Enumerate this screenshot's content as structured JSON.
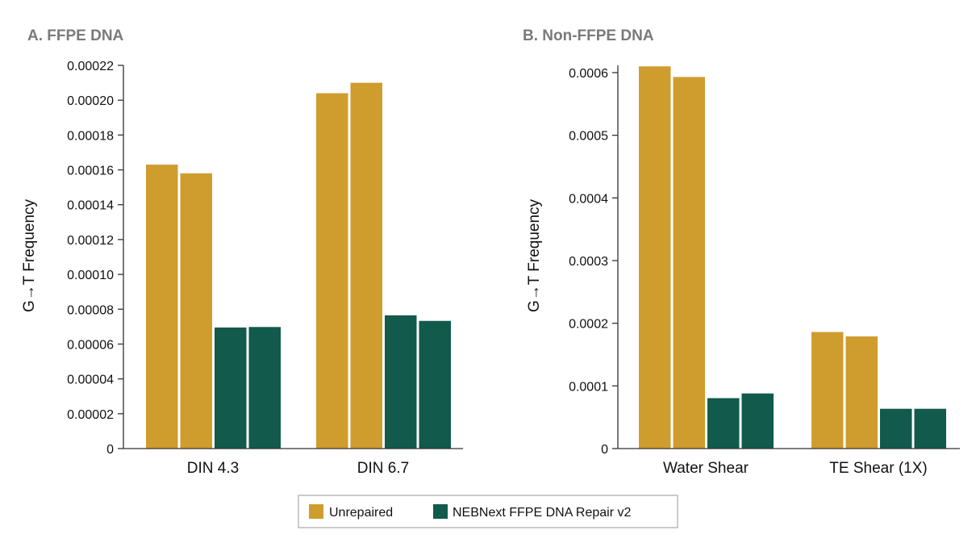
{
  "colors": {
    "unrepaired": "#CF9C2E",
    "repaired": "#115A4C"
  },
  "legend": {
    "items": [
      {
        "label": "Unrepaired",
        "color": "#CF9C2E"
      },
      {
        "label": "NEBNext FFPE DNA Repair v2",
        "color": "#115A4C"
      }
    ]
  },
  "chart_data": [
    {
      "type": "bar",
      "title": "A. FFPE DNA",
      "ylabel": "G→T Frequency",
      "ylim": [
        0,
        0.00022
      ],
      "yticks": [
        "0",
        "0.00002",
        "0.00004",
        "0.00006",
        "0.00008",
        "0.00010",
        "0.00012",
        "0.00014",
        "0.00016",
        "0.00018",
        "0.00020",
        "0.00022"
      ],
      "categories": [
        "DIN 4.3",
        "DIN 6.7"
      ],
      "series": [
        {
          "name": "Unrepaired",
          "values": [
            0.000163,
            0.000204
          ]
        },
        {
          "name": "Unrepaired",
          "values": [
            0.000158,
            0.00021
          ]
        },
        {
          "name": "NEBNext FFPE DNA Repair v2",
          "values": [
            6.95e-05,
            7.65e-05
          ]
        },
        {
          "name": "NEBNext FFPE DNA Repair v2",
          "values": [
            6.98e-05,
            7.33e-05
          ]
        }
      ]
    },
    {
      "type": "bar",
      "title": "B. Non-FFPE DNA",
      "ylabel": "G→T Frequency",
      "ylim": [
        0,
        0.0006
      ],
      "yticks": [
        "0",
        "0.0001",
        "0.0002",
        "0.0003",
        "0.0004",
        "0.0005",
        "0.0006"
      ],
      "categories": [
        "Water Shear",
        "TE Shear (1X)"
      ],
      "series": [
        {
          "name": "Unrepaired",
          "values": [
            0.00061,
            0.000186
          ]
        },
        {
          "name": "Unrepaired",
          "values": [
            0.000593,
            0.000179
          ]
        },
        {
          "name": "NEBNext FFPE DNA Repair v2",
          "values": [
            8.05e-05,
            6.35e-05
          ]
        },
        {
          "name": "NEBNext FFPE DNA Repair v2",
          "values": [
            8.8e-05,
            6.35e-05
          ]
        }
      ]
    }
  ]
}
